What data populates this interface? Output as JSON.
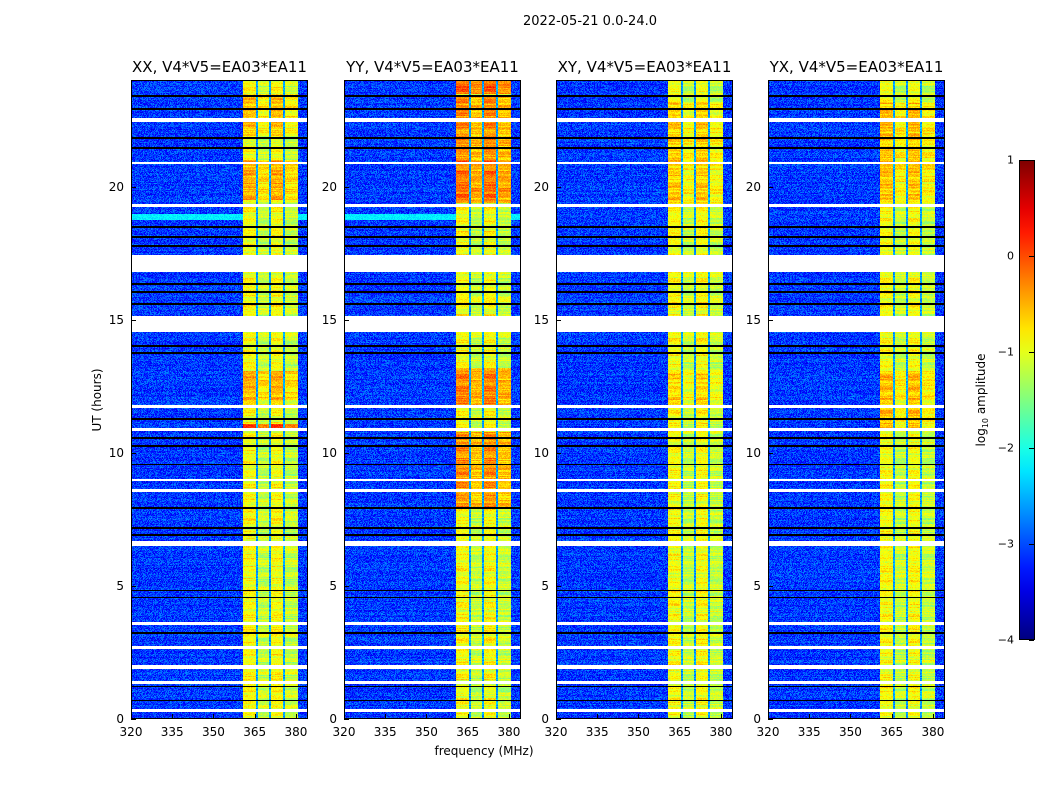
{
  "chart_data": {
    "type": "heatmap",
    "title": "2022-05-21 0.0-24.0",
    "xlabel": "frequency (MHz)",
    "ylabel": "UT (hours)",
    "xlim": [
      320,
      384.4
    ],
    "ylim": [
      0,
      24
    ],
    "xticks": [
      "320",
      "335",
      "350",
      "365",
      "380"
    ],
    "xtick_values": [
      320,
      335,
      350,
      365,
      380
    ],
    "yticks": [
      "0",
      "5",
      "10",
      "15",
      "20"
    ],
    "ytick_values": [
      0,
      5,
      10,
      15,
      20
    ],
    "colorbar": {
      "label_prefix": "log",
      "label_sub": "10",
      "label_suffix": " amplitude",
      "range": [
        -4,
        1
      ],
      "ticks": [
        "1",
        "0",
        "−1",
        "−2",
        "−3",
        "−4"
      ],
      "tick_values": [
        1,
        0,
        -1,
        -2,
        -3,
        -4
      ],
      "colormap": "jet"
    },
    "background_level": -3.1,
    "band_mhz": [
      360.7,
      380.4
    ],
    "band_level": -1.0,
    "band_channel_edges_mhz": [
      365.5,
      370.5,
      375.6
    ],
    "flagged_hours": [
      [
        22.45,
        22.6
      ],
      [
        20.85,
        20.95
      ],
      [
        19.25,
        19.35
      ],
      [
        16.8,
        17.45
      ],
      [
        14.55,
        15.15
      ],
      [
        11.7,
        11.8
      ],
      [
        10.85,
        10.95
      ],
      [
        8.95,
        9.05
      ],
      [
        8.55,
        8.65
      ],
      [
        6.5,
        6.7
      ],
      [
        3.55,
        3.65
      ],
      [
        2.65,
        2.75
      ],
      [
        1.9,
        2.05
      ],
      [
        1.35,
        1.45
      ],
      [
        0.3,
        0.4
      ]
    ],
    "zero_hours": [
      23.41,
      22.93,
      21.84,
      21.46,
      18.5,
      18.12,
      17.79,
      16.36,
      16.06,
      15.61,
      14.03,
      13.77,
      11.29,
      10.58,
      10.28,
      9.57,
      7.95,
      7.2,
      6.94,
      4.84,
      4.58,
      3.26,
      1.24,
      0.71
    ],
    "panels": [
      {
        "title": "XX, V4*V5=EA03*EA11",
        "rfi_rows": [
          [
            18.75,
            19.0,
            -2.2
          ]
        ],
        "hot_intervals": [
          [
            10.9,
            11.1,
            -0.15
          ],
          [
            12.0,
            13.1,
            -0.6
          ],
          [
            19.5,
            21.0,
            -0.6
          ],
          [
            21.9,
            23.5,
            -0.7
          ]
        ]
      },
      {
        "title": "YY, V4*V5=EA03*EA11",
        "rfi_rows": [
          [
            18.75,
            19.0,
            -2.2
          ]
        ],
        "hot_intervals": [
          [
            8.0,
            10.8,
            -0.45
          ],
          [
            11.8,
            13.2,
            -0.4
          ],
          [
            19.4,
            21.0,
            -0.3
          ],
          [
            21.0,
            23.4,
            -0.45
          ],
          [
            23.5,
            24.0,
            -0.2
          ]
        ]
      },
      {
        "title": "XY, V4*V5=EA03*EA11",
        "rfi_rows": [],
        "hot_intervals": [
          [
            11.8,
            13.1,
            -0.75
          ],
          [
            19.4,
            23.2,
            -0.75
          ]
        ]
      },
      {
        "title": "YX, V4*V5=EA03*EA11",
        "rfi_rows": [],
        "hot_intervals": [
          [
            10.9,
            13.1,
            -0.7
          ],
          [
            19.4,
            23.2,
            -0.7
          ]
        ]
      }
    ]
  }
}
